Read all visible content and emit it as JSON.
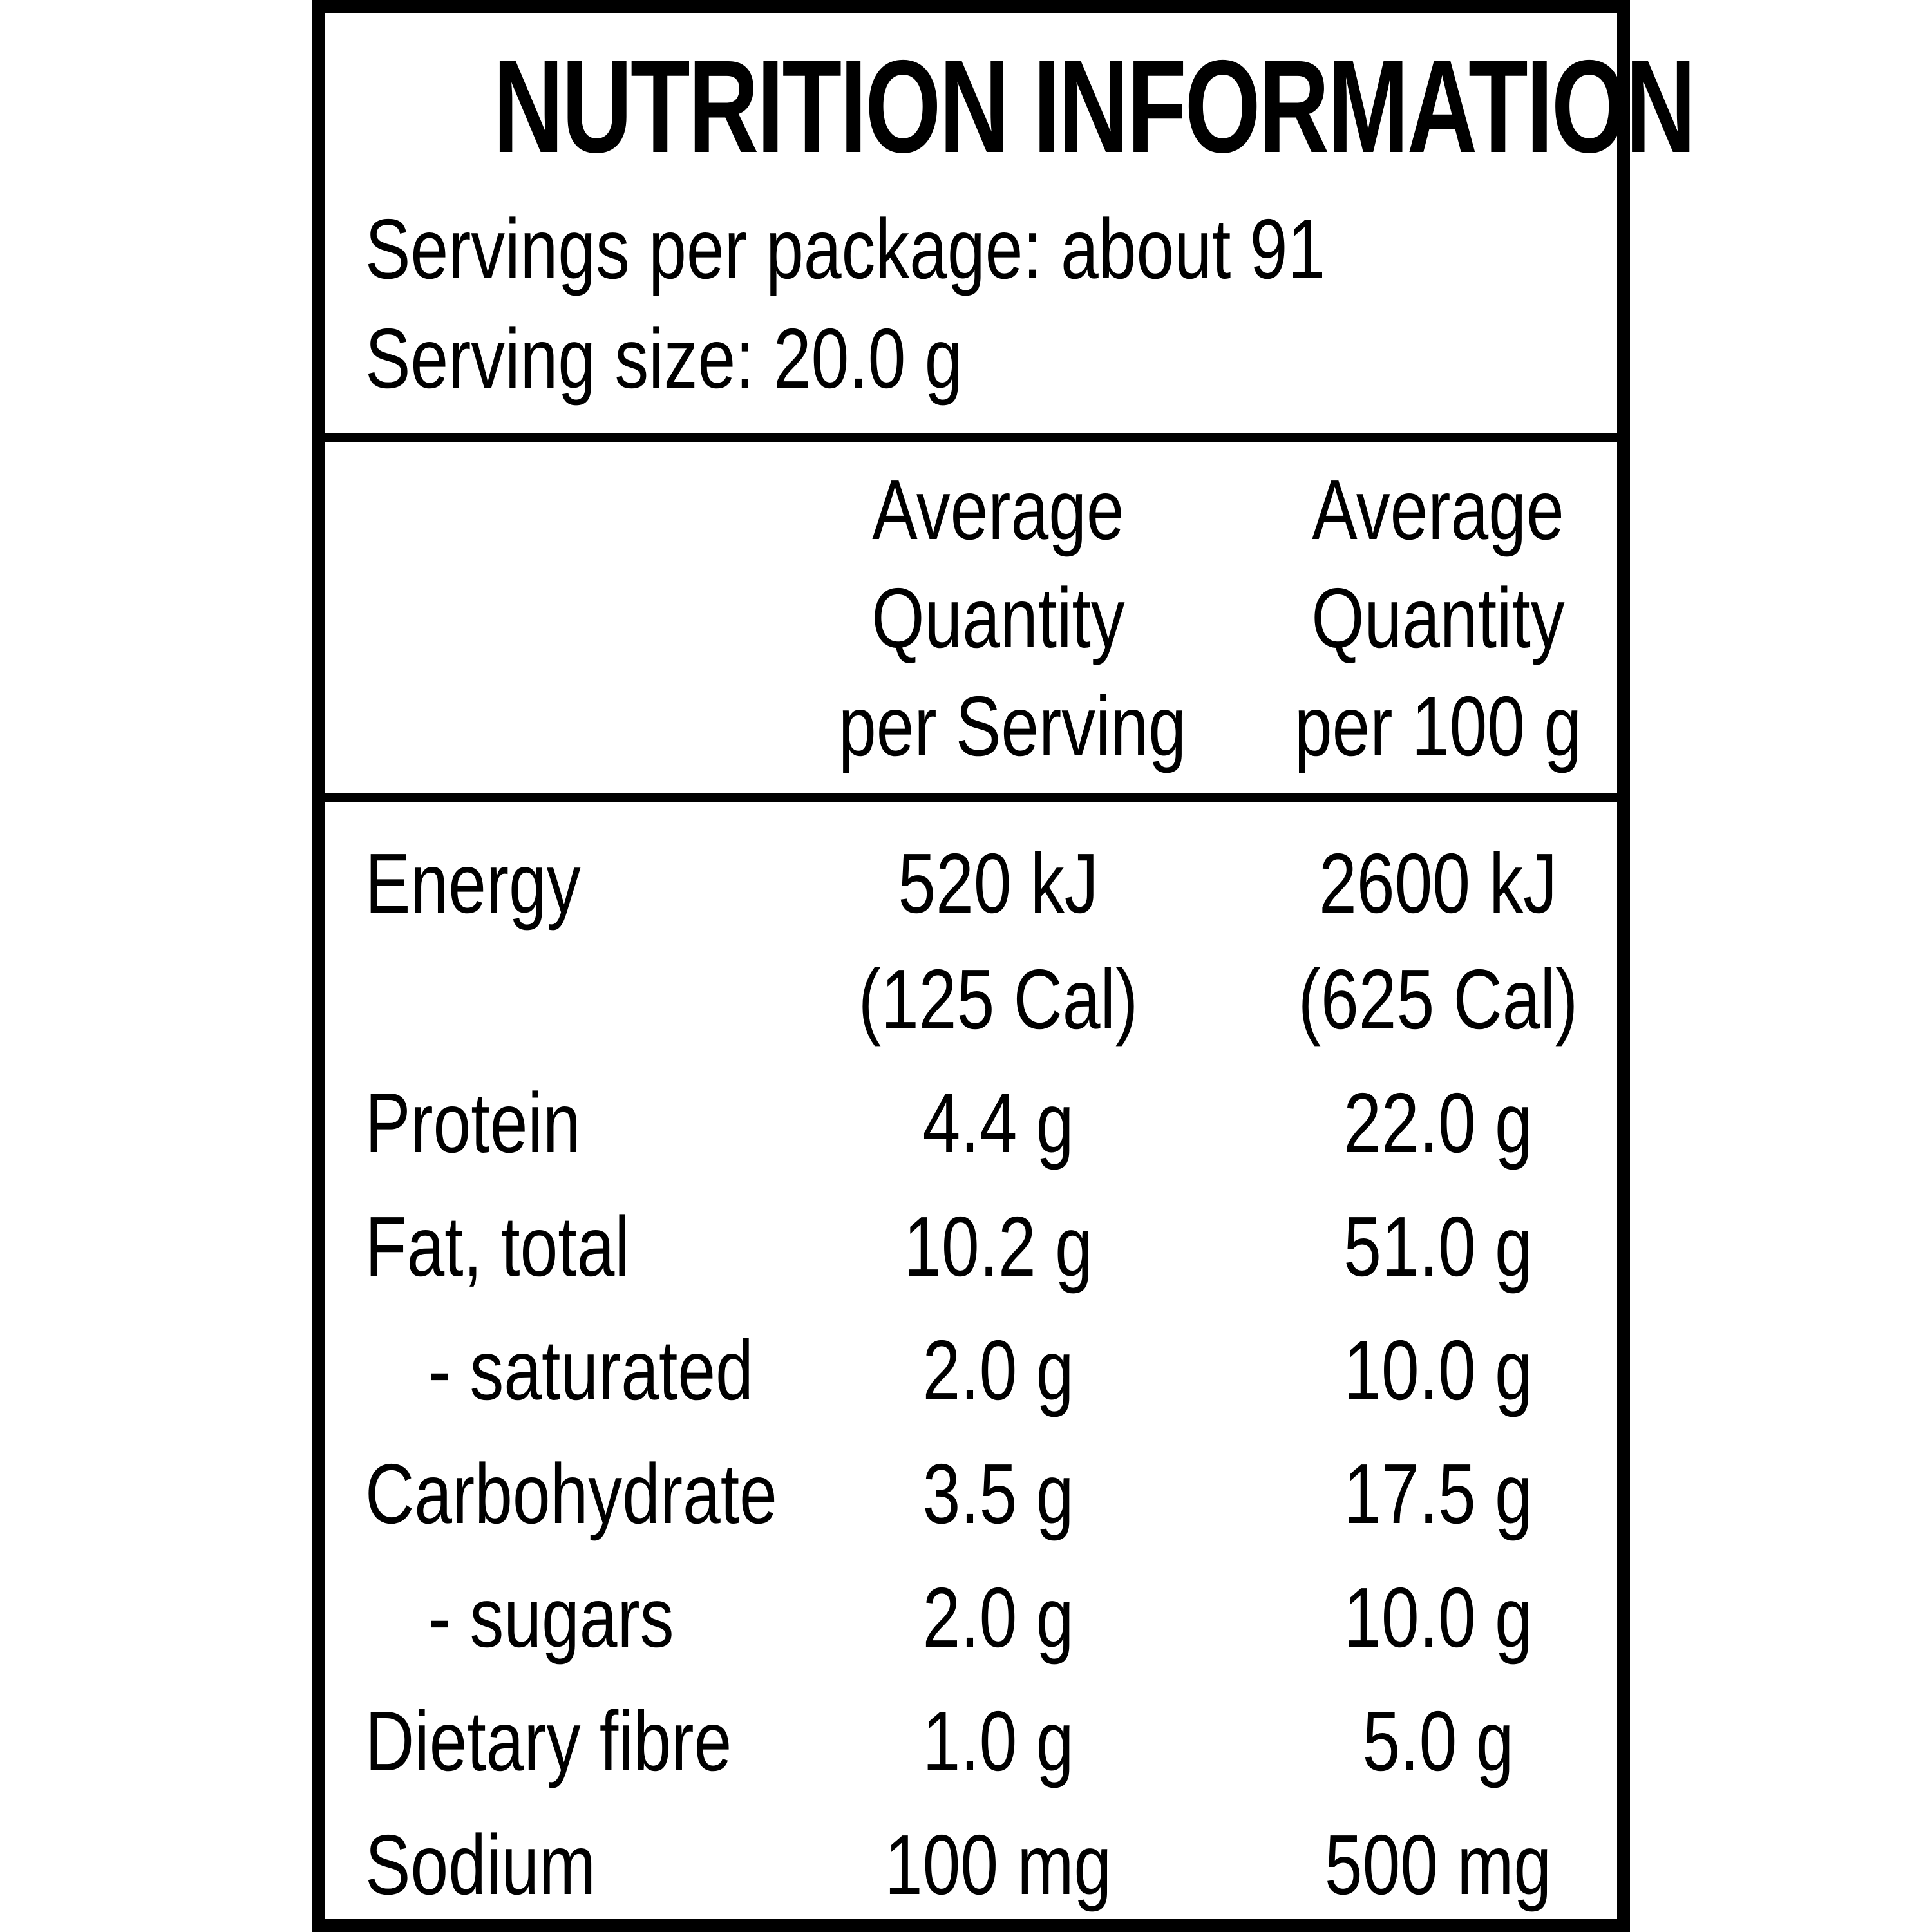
{
  "title": "NUTRITION INFORMATION",
  "servings_per_package": "Servings per package: about 91",
  "serving_size": "Serving size: 20.0 g",
  "columns": [
    {
      "line1": "Average",
      "line2": "Quantity",
      "line3": "per Serving"
    },
    {
      "line1": "Average",
      "line2": "Quantity",
      "line3": "per 100 g"
    }
  ],
  "rows": [
    {
      "label": "Energy",
      "per_serving": "520 kJ",
      "per_serving_sub": "(125 Cal)",
      "per_100g": "2600 kJ",
      "per_100g_sub": "(625 Cal)"
    },
    {
      "label": "Protein",
      "per_serving": "4.4 g",
      "per_100g": "22.0 g"
    },
    {
      "label": "Fat, total",
      "per_serving": "10.2 g",
      "per_100g": "51.0 g"
    },
    {
      "label": "- saturated",
      "per_serving": "2.0 g",
      "per_100g": "10.0 g"
    },
    {
      "label": "Carbohydrate",
      "per_serving": "3.5 g",
      "per_100g": "17.5 g"
    },
    {
      "label": "- sugars",
      "per_serving": "2.0 g",
      "per_100g": "10.0 g"
    },
    {
      "label": "Dietary fibre",
      "per_serving": "1.0 g",
      "per_100g": "5.0 g"
    },
    {
      "label": "Sodium",
      "per_serving": "100 mg",
      "per_100g": "500 mg"
    }
  ]
}
